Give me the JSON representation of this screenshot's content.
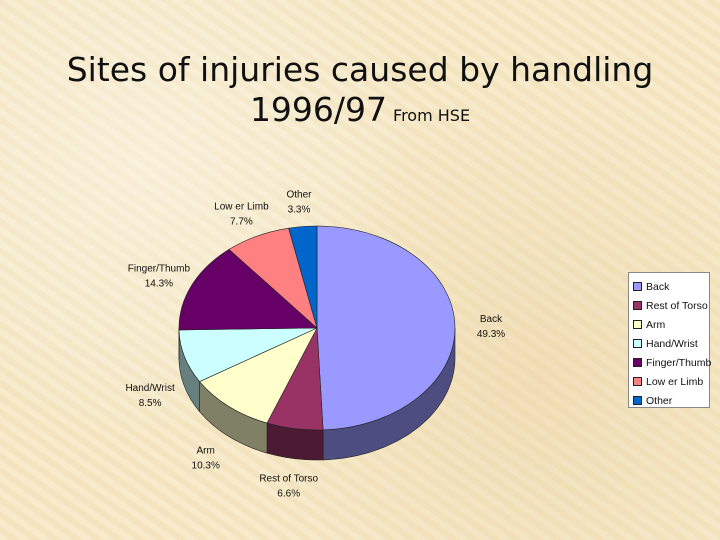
{
  "slide": {
    "title_line1": "Sites of injuries caused by handling",
    "title_line2": "1996/97",
    "source_note": "From HSE"
  },
  "chart_data": {
    "type": "pie",
    "title": "",
    "slices": [
      {
        "label": "Back",
        "value": 49.3,
        "value_label": "49.3%",
        "color": "#9999ff"
      },
      {
        "label": "Rest of Torso",
        "value": 6.6,
        "value_label": "6.6%",
        "color": "#993366"
      },
      {
        "label": "Arm",
        "value": 10.3,
        "value_label": "10.3%",
        "color": "#ffffcc"
      },
      {
        "label": "Hand/Wrist",
        "value": 8.5,
        "value_label": "8.5%",
        "color": "#ccffff"
      },
      {
        "label": "Finger/Thumb",
        "value": 14.3,
        "value_label": "14.3%",
        "color": "#660066"
      },
      {
        "label": "Low er Limb",
        "value": 7.7,
        "value_label": "7.7%",
        "color": "#ff8080"
      },
      {
        "label": "Other",
        "value": 3.3,
        "value_label": "3.3%",
        "color": "#0066cc"
      }
    ],
    "legend_placement": "right"
  }
}
